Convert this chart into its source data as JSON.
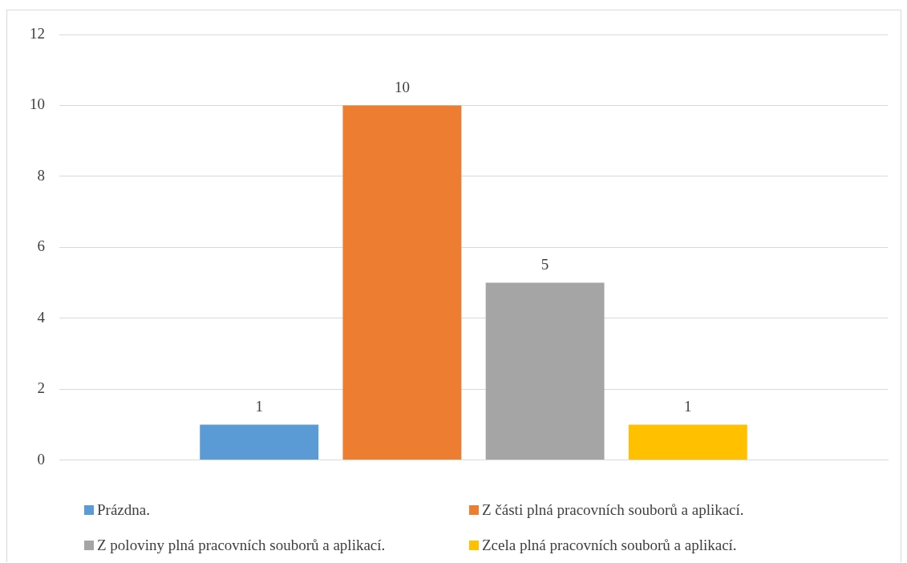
{
  "chart_data": {
    "type": "bar",
    "categories": [
      null
    ],
    "series": [
      {
        "name": "Prázdna.",
        "color": "#5b9bd5",
        "values": [
          1
        ]
      },
      {
        "name": "Z části plná pracovních souborů a aplikací.",
        "color": "#ed7d31",
        "values": [
          10
        ]
      },
      {
        "name": "Z poloviny plná pracovních souborů a aplikací.",
        "color": "#a5a5a5",
        "values": [
          5
        ]
      },
      {
        "name": "Zcela plná pracovních souborů a aplikací.",
        "color": "#ffc000",
        "values": [
          1
        ]
      }
    ],
    "ylim": [
      0,
      12
    ],
    "yticks": [
      0,
      2,
      4,
      6,
      8,
      10,
      12
    ],
    "grid": "y",
    "legend": "bottom",
    "data_labels": true
  }
}
